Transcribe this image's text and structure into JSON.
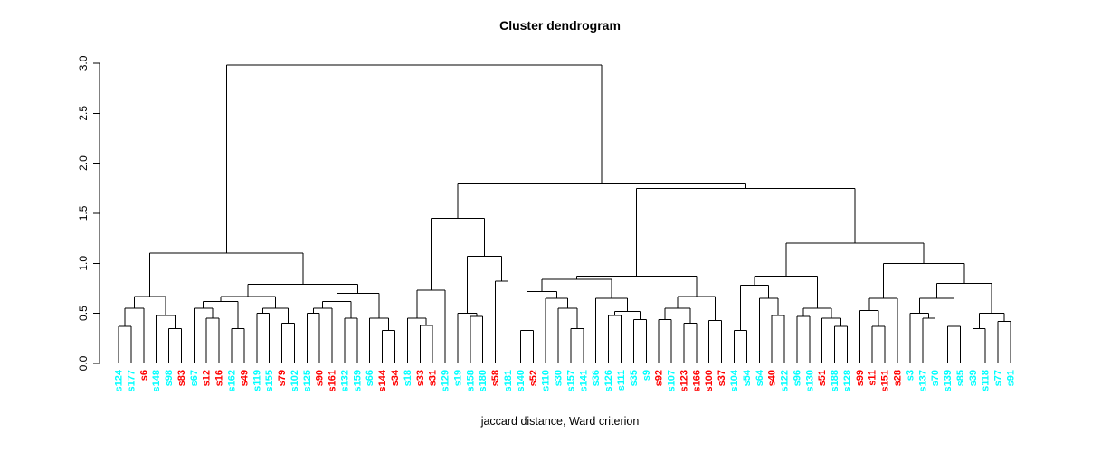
{
  "chart_data": {
    "type": "dendrogram",
    "title": "Cluster dendrogram",
    "xlabel": "jaccard distance, Ward criterion",
    "ylabel": "",
    "ylim": [
      0,
      3
    ],
    "yticks": [
      "0.0",
      "0.5",
      "1.0",
      "1.5",
      "2.0",
      "2.5",
      "3.0"
    ],
    "grid": false,
    "line_color": "#000000",
    "background": "#ffffff",
    "cluster_colors": {
      "red": "#ff0000",
      "cyan": "#00ffff"
    },
    "n_leaves": 72,
    "leaves": [
      {
        "label": "s124",
        "color": "cyan"
      },
      {
        "label": "s177",
        "color": "cyan"
      },
      {
        "label": "s6",
        "color": "red"
      },
      {
        "label": "s148",
        "color": "cyan"
      },
      {
        "label": "s98",
        "color": "cyan"
      },
      {
        "label": "s83",
        "color": "red"
      },
      {
        "label": "s67",
        "color": "cyan"
      },
      {
        "label": "s12",
        "color": "red"
      },
      {
        "label": "s16",
        "color": "red"
      },
      {
        "label": "s162",
        "color": "cyan"
      },
      {
        "label": "s49",
        "color": "red"
      },
      {
        "label": "s119",
        "color": "cyan"
      },
      {
        "label": "s155",
        "color": "cyan"
      },
      {
        "label": "s79",
        "color": "red"
      },
      {
        "label": "s102",
        "color": "cyan"
      },
      {
        "label": "s125",
        "color": "cyan"
      },
      {
        "label": "s90",
        "color": "red"
      },
      {
        "label": "s161",
        "color": "red"
      },
      {
        "label": "s132",
        "color": "cyan"
      },
      {
        "label": "s159",
        "color": "cyan"
      },
      {
        "label": "s66",
        "color": "cyan"
      },
      {
        "label": "s144",
        "color": "red"
      },
      {
        "label": "s34",
        "color": "red"
      },
      {
        "label": "s18",
        "color": "cyan"
      },
      {
        "label": "s33",
        "color": "red"
      },
      {
        "label": "s31",
        "color": "red"
      },
      {
        "label": "s129",
        "color": "cyan"
      },
      {
        "label": "s19",
        "color": "cyan"
      },
      {
        "label": "s158",
        "color": "cyan"
      },
      {
        "label": "s180",
        "color": "cyan"
      },
      {
        "label": "s58",
        "color": "red"
      },
      {
        "label": "s181",
        "color": "cyan"
      },
      {
        "label": "s140",
        "color": "cyan"
      },
      {
        "label": "s52",
        "color": "red"
      },
      {
        "label": "s110",
        "color": "cyan"
      },
      {
        "label": "s30",
        "color": "cyan"
      },
      {
        "label": "s157",
        "color": "cyan"
      },
      {
        "label": "s141",
        "color": "cyan"
      },
      {
        "label": "s36",
        "color": "cyan"
      },
      {
        "label": "s126",
        "color": "cyan"
      },
      {
        "label": "s111",
        "color": "cyan"
      },
      {
        "label": "s35",
        "color": "cyan"
      },
      {
        "label": "s9",
        "color": "cyan"
      },
      {
        "label": "s92",
        "color": "red"
      },
      {
        "label": "s107",
        "color": "cyan"
      },
      {
        "label": "s123",
        "color": "red"
      },
      {
        "label": "s166",
        "color": "red"
      },
      {
        "label": "s100",
        "color": "red"
      },
      {
        "label": "s37",
        "color": "red"
      },
      {
        "label": "s104",
        "color": "cyan"
      },
      {
        "label": "s54",
        "color": "cyan"
      },
      {
        "label": "s64",
        "color": "cyan"
      },
      {
        "label": "s40",
        "color": "red"
      },
      {
        "label": "s122",
        "color": "cyan"
      },
      {
        "label": "s96",
        "color": "cyan"
      },
      {
        "label": "s130",
        "color": "cyan"
      },
      {
        "label": "s51",
        "color": "red"
      },
      {
        "label": "s188",
        "color": "cyan"
      },
      {
        "label": "s128",
        "color": "cyan"
      },
      {
        "label": "s99",
        "color": "red"
      },
      {
        "label": "s11",
        "color": "red"
      },
      {
        "label": "s151",
        "color": "red"
      },
      {
        "label": "s28",
        "color": "red"
      },
      {
        "label": "s3",
        "color": "cyan"
      },
      {
        "label": "s137",
        "color": "cyan"
      },
      {
        "label": "s70",
        "color": "cyan"
      },
      {
        "label": "s139",
        "color": "cyan"
      },
      {
        "label": "s85",
        "color": "cyan"
      },
      {
        "label": "s39",
        "color": "cyan"
      },
      {
        "label": "s118",
        "color": "cyan"
      },
      {
        "label": "s77",
        "color": "cyan"
      },
      {
        "label": "s91",
        "color": "cyan"
      }
    ],
    "tree": {
      "h": 2.98,
      "c": [
        {
          "h": 1.1,
          "c": [
            {
              "h": 0.67,
              "c": [
                {
                  "h": 0.55,
                  "c": [
                    {
                      "h": 0.37,
                      "c": [
                        "s124",
                        "s177"
                      ]
                    },
                    "s6"
                  ]
                },
                {
                  "h": 0.48,
                  "c": [
                    "s148",
                    {
                      "h": 0.35,
                      "c": [
                        "s98",
                        "s83"
                      ]
                    }
                  ]
                }
              ]
            },
            {
              "h": 0.79,
              "c": [
                {
                  "h": 0.67,
                  "c": [
                    {
                      "h": 0.62,
                      "c": [
                        {
                          "h": 0.55,
                          "c": [
                            "s67",
                            {
                              "h": 0.45,
                              "c": [
                                "s12",
                                "s16"
                              ]
                            }
                          ]
                        },
                        {
                          "h": 0.35,
                          "c": [
                            "s162",
                            "s49"
                          ]
                        }
                      ]
                    },
                    {
                      "h": 0.55,
                      "c": [
                        {
                          "h": 0.5,
                          "c": [
                            "s119",
                            "s155"
                          ]
                        },
                        {
                          "h": 0.4,
                          "c": [
                            "s79",
                            "s102"
                          ]
                        }
                      ]
                    }
                  ]
                },
                {
                  "h": 0.7,
                  "c": [
                    {
                      "h": 0.62,
                      "c": [
                        {
                          "h": 0.55,
                          "c": [
                            {
                              "h": 0.5,
                              "c": [
                                "s125",
                                "s90"
                              ]
                            },
                            "s161"
                          ]
                        },
                        {
                          "h": 0.45,
                          "c": [
                            "s132",
                            "s159"
                          ]
                        }
                      ]
                    },
                    {
                      "h": 0.45,
                      "c": [
                        "s66",
                        {
                          "h": 0.33,
                          "c": [
                            "s144",
                            "s34"
                          ]
                        }
                      ]
                    }
                  ]
                }
              ]
            }
          ]
        },
        {
          "h": 1.8,
          "c": [
            {
              "h": 1.45,
              "c": [
                {
                  "h": 0.73,
                  "c": [
                    {
                      "h": 0.45,
                      "c": [
                        "s18",
                        {
                          "h": 0.38,
                          "c": [
                            "s33",
                            "s31"
                          ]
                        }
                      ]
                    },
                    "s129"
                  ]
                },
                {
                  "h": 1.07,
                  "c": [
                    {
                      "h": 0.5,
                      "c": [
                        "s19",
                        {
                          "h": 0.47,
                          "c": [
                            "s158",
                            "s180"
                          ]
                        }
                      ]
                    },
                    {
                      "h": 0.82,
                      "c": [
                        "s58",
                        "s181"
                      ]
                    }
                  ]
                }
              ]
            },
            {
              "h": 1.75,
              "c": [
                {
                  "h": 0.87,
                  "c": [
                    {
                      "h": 0.84,
                      "c": [
                        {
                          "h": 0.72,
                          "c": [
                            {
                              "h": 0.33,
                              "c": [
                                "s140",
                                "s52"
                              ]
                            },
                            {
                              "h": 0.65,
                              "c": [
                                "s110",
                                {
                                  "h": 0.55,
                                  "c": [
                                    "s30",
                                    {
                                      "h": 0.35,
                                      "c": [
                                        "s157",
                                        "s141"
                                      ]
                                    }
                                  ]
                                }
                              ]
                            }
                          ]
                        },
                        {
                          "h": 0.65,
                          "c": [
                            "s36",
                            {
                              "h": 0.52,
                              "c": [
                                {
                                  "h": 0.48,
                                  "c": [
                                    "s126",
                                    "s111"
                                  ]
                                },
                                {
                                  "h": 0.44,
                                  "c": [
                                    "s35",
                                    "s9"
                                  ]
                                }
                              ]
                            }
                          ]
                        }
                      ]
                    },
                    {
                      "h": 0.67,
                      "c": [
                        {
                          "h": 0.55,
                          "c": [
                            {
                              "h": 0.44,
                              "c": [
                                "s92",
                                "s107"
                              ]
                            },
                            {
                              "h": 0.4,
                              "c": [
                                "s123",
                                "s166"
                              ]
                            }
                          ]
                        },
                        {
                          "h": 0.43,
                          "c": [
                            "s100",
                            "s37"
                          ]
                        }
                      ]
                    }
                  ]
                },
                {
                  "h": 1.2,
                  "c": [
                    {
                      "h": 0.87,
                      "c": [
                        {
                          "h": 0.78,
                          "c": [
                            {
                              "h": 0.33,
                              "c": [
                                "s104",
                                "s54"
                              ]
                            },
                            {
                              "h": 0.65,
                              "c": [
                                "s64",
                                {
                                  "h": 0.48,
                                  "c": [
                                    "s40",
                                    "s122"
                                  ]
                                }
                              ]
                            }
                          ]
                        },
                        {
                          "h": 0.55,
                          "c": [
                            {
                              "h": 0.47,
                              "c": [
                                "s96",
                                "s130"
                              ]
                            },
                            {
                              "h": 0.45,
                              "c": [
                                "s51",
                                {
                                  "h": 0.37,
                                  "c": [
                                    "s188",
                                    "s128"
                                  ]
                                }
                              ]
                            }
                          ]
                        }
                      ]
                    },
                    {
                      "h": 1.0,
                      "c": [
                        {
                          "h": 0.65,
                          "c": [
                            {
                              "h": 0.53,
                              "c": [
                                "s99",
                                {
                                  "h": 0.37,
                                  "c": [
                                    "s11",
                                    "s151"
                                  ]
                                }
                              ]
                            },
                            "s28"
                          ]
                        },
                        {
                          "h": 0.8,
                          "c": [
                            {
                              "h": 0.65,
                              "c": [
                                {
                                  "h": 0.5,
                                  "c": [
                                    "s3",
                                    {
                                      "h": 0.45,
                                      "c": [
                                        "s137",
                                        "s70"
                                      ]
                                    }
                                  ]
                                },
                                {
                                  "h": 0.37,
                                  "c": [
                                    "s139",
                                    "s85"
                                  ]
                                }
                              ]
                            },
                            {
                              "h": 0.5,
                              "c": [
                                {
                                  "h": 0.35,
                                  "c": [
                                    "s39",
                                    "s118"
                                  ]
                                },
                                {
                                  "h": 0.42,
                                  "c": [
                                    "s77",
                                    "s91"
                                  ]
                                }
                              ]
                            }
                          ]
                        }
                      ]
                    }
                  ]
                }
              ]
            }
          ]
        }
      ]
    }
  }
}
